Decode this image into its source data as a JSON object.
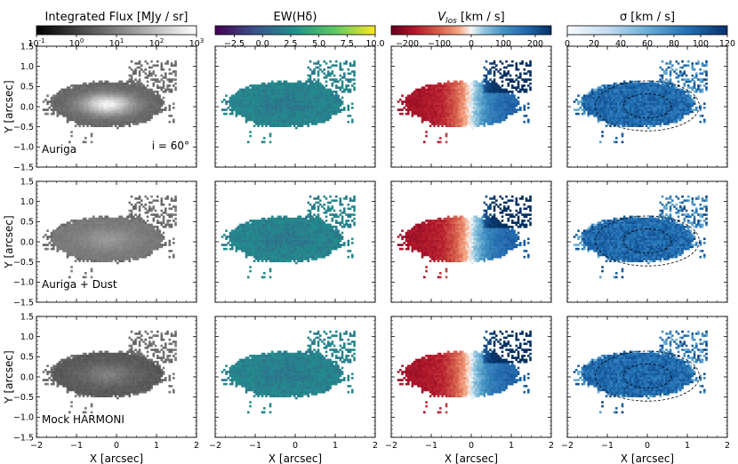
{
  "figure": {
    "background": "#ffffff",
    "axis_color": "#000000"
  },
  "chart_data": {
    "type": "heatmap",
    "rows": [
      {
        "label": "Auriga",
        "extra_label": "i = 60°"
      },
      {
        "label": "Auriga + Dust",
        "extra_label": ""
      },
      {
        "label": "Mock HARMONI",
        "extra_label": ""
      }
    ],
    "columns": [
      {
        "quantity": "flux",
        "colorbar_title": "Integrated Flux [MJy / sr]",
        "colormap": "gray",
        "scale": "log",
        "range": [
          0.1,
          1000
        ],
        "ticks": [
          0.1,
          1,
          10,
          100,
          1000
        ],
        "tick_base": "10",
        "tick_exponents": [
          "-1",
          "0",
          "1",
          "2",
          "3"
        ]
      },
      {
        "quantity": "ew",
        "colorbar_title": "EW(Hδ)",
        "colormap": "viridis",
        "scale": "linear",
        "range": [
          -4.2,
          10.0
        ],
        "ticks": [
          -2.5,
          0.0,
          2.5,
          5.0,
          7.5,
          10.0
        ],
        "tick_labels": [
          "−2.5",
          "0.0",
          "2.5",
          "5.0",
          "7.5",
          "10.0"
        ]
      },
      {
        "quantity": "vlos",
        "colorbar_title_main": "V",
        "colorbar_title_sub": "los",
        "colorbar_title_rest": " [km / s]",
        "colormap": "RdBu",
        "scale": "linear",
        "range": [
          -250,
          250
        ],
        "ticks": [
          -200,
          -100,
          0,
          100,
          200
        ],
        "tick_labels": [
          "−200",
          "−100",
          "0",
          "100",
          "200"
        ]
      },
      {
        "quantity": "sigma",
        "colorbar_title": "σ [km / s]",
        "colormap": "Blues",
        "scale": "linear",
        "range": [
          0,
          120
        ],
        "ticks": [
          0,
          20,
          40,
          60,
          80,
          100,
          120
        ],
        "tick_labels": [
          "0",
          "20",
          "40",
          "60",
          "80",
          "100",
          "120"
        ],
        "ellipses_arcsec": [
          {
            "a": 0.6,
            "b": 0.3
          },
          {
            "a": 1.3,
            "b": 0.62
          }
        ]
      }
    ],
    "x_axis": {
      "label": "X [arcsec]",
      "range": [
        -2,
        2
      ],
      "ticks": [
        -2,
        -1,
        0,
        1,
        2
      ],
      "tick_labels": [
        "−2",
        "−1",
        "0",
        "1",
        "2"
      ]
    },
    "y_axis": {
      "label": "Y [arcsec]",
      "range": [
        -1.5,
        1.5
      ],
      "ticks": [
        -1.5,
        -1.0,
        -0.5,
        0.0,
        0.5,
        1.0,
        1.5
      ],
      "tick_labels": [
        "−1.5",
        "−1.0",
        "−0.5",
        "0.0",
        "0.5",
        "1.0",
        "1.5"
      ]
    },
    "galaxy_extent_arcsec": {
      "x": [
        -1.75,
        1.25
      ],
      "y": [
        -0.6,
        0.65
      ]
    }
  }
}
